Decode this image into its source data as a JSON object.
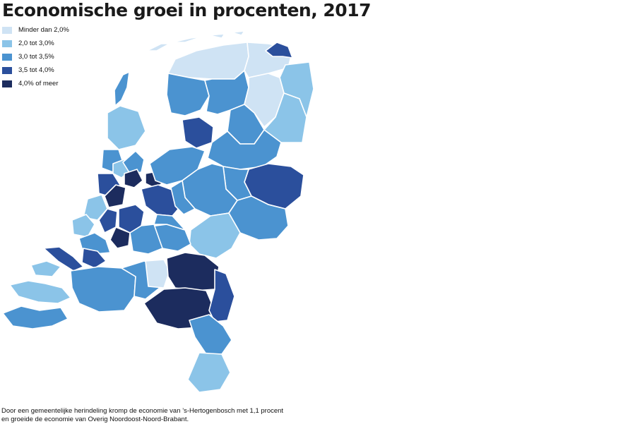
{
  "title": "Economische groei in procenten, 2017",
  "legend": [
    {
      "label": "Minder dan 2,0%",
      "color": "#cfe3f4"
    },
    {
      "label": "2,0 tot 3,0%",
      "color": "#8bc4e8"
    },
    {
      "label": "3,0 tot 3,5%",
      "color": "#4b93d0"
    },
    {
      "label": "3,5 tot 4,0%",
      "color": "#2b4f9c"
    },
    {
      "label": "4,0% of meer",
      "color": "#1c2c5e"
    }
  ],
  "footnote": {
    "line1": "Door een gemeentelijke herindeling kromp de economie van ’s-Hertogenbosch met 1,1 procent",
    "line2": "en groeide de economie van Overig Noordoost-Noord-Brabant."
  }
}
